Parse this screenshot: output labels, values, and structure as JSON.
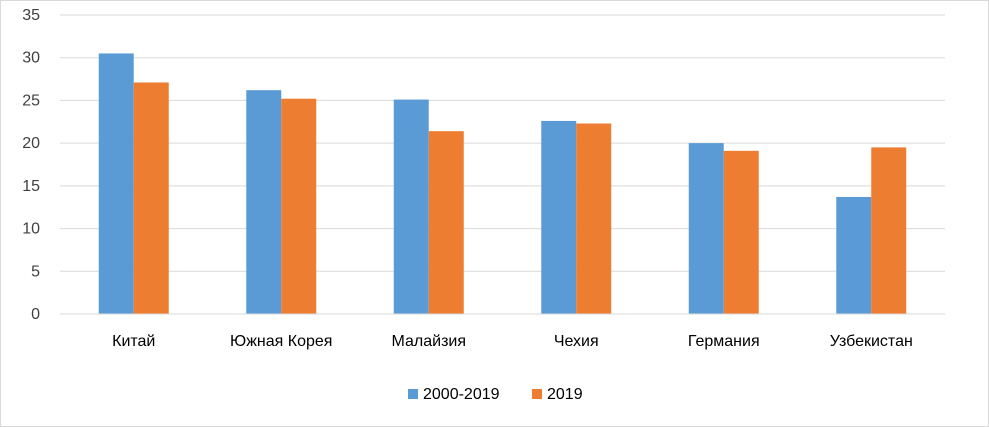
{
  "chart_data": {
    "type": "bar",
    "categories": [
      "Китай",
      "Южная Корея",
      "Малайзия",
      "Чехия",
      "Германия",
      "Узбекистан"
    ],
    "series": [
      {
        "name": "2000-2019",
        "color": "#5B9BD5",
        "values": [
          30.5,
          26.2,
          25.1,
          22.6,
          20.0,
          13.7
        ]
      },
      {
        "name": "2019",
        "color": "#ED7D31",
        "values": [
          27.1,
          25.2,
          21.4,
          22.3,
          19.1,
          19.5
        ]
      }
    ],
    "title": "",
    "xlabel": "",
    "ylabel": "",
    "ylim": [
      0,
      35
    ],
    "yticks": [
      0,
      5,
      10,
      15,
      20,
      25,
      30,
      35
    ],
    "grid": true,
    "legend": "bottom"
  }
}
